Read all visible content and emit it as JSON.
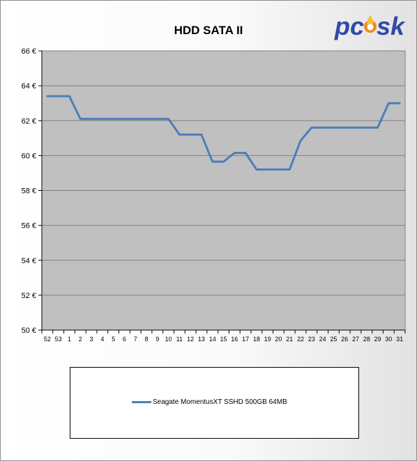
{
  "brand": {
    "logo_text": "pcosk",
    "primary_color": "#2f4aa8",
    "flame_color": "#f08a1c"
  },
  "chart_data": {
    "type": "line",
    "title": "HDD SATA II",
    "xlabel": "",
    "ylabel": "",
    "categories": [
      "52",
      "53",
      "1",
      "2",
      "3",
      "4",
      "5",
      "6",
      "7",
      "8",
      "9",
      "10",
      "11",
      "12",
      "13",
      "14",
      "15",
      "16",
      "17",
      "18",
      "19",
      "20",
      "21",
      "22",
      "23",
      "24",
      "25",
      "26",
      "27",
      "28",
      "29",
      "30",
      "31"
    ],
    "ylim": [
      50,
      66
    ],
    "yticks": [
      "50 €",
      "52 €",
      "54 €",
      "56 €",
      "58 €",
      "60 €",
      "62 €",
      "64 €",
      "66 €"
    ],
    "ytick_values": [
      50,
      52,
      54,
      56,
      58,
      60,
      62,
      64,
      66
    ],
    "grid": true,
    "legend_position": "bottom",
    "series": [
      {
        "name": "Seagate MomentusXT SSHD 500GB 64MB",
        "color": "#4a7ebb",
        "values": [
          63.4,
          63.4,
          63.4,
          62.1,
          62.1,
          62.1,
          62.1,
          62.1,
          62.1,
          62.1,
          62.1,
          62.1,
          61.2,
          61.2,
          61.2,
          59.65,
          59.65,
          60.15,
          60.15,
          59.2,
          59.2,
          59.2,
          59.2,
          60.85,
          61.6,
          61.6,
          61.6,
          61.6,
          61.6,
          61.6,
          61.6,
          63.0,
          63.0
        ]
      }
    ]
  }
}
